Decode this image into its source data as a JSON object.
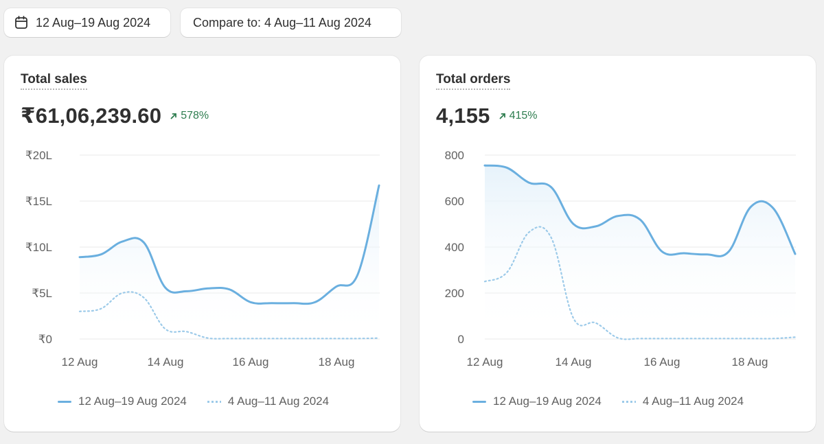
{
  "toolbar": {
    "date_range_label": "12 Aug–19 Aug 2024",
    "compare_label": "Compare to: 4 Aug–11 Aug 2024"
  },
  "colors": {
    "primary_line": "#6aafdf",
    "compare_line": "#9ccae9",
    "positive": "#2e7d4f"
  },
  "cards": [
    {
      "title": "Total sales",
      "value": "₹61,06,239.60",
      "change": "578%",
      "legend_primary": "12 Aug–19 Aug 2024",
      "legend_compare": "4 Aug–11 Aug 2024",
      "chart_data": {
        "type": "line",
        "title": "Total sales",
        "ylim": [
          0,
          2000000
        ],
        "y_tick_labels": [
          "₹20L",
          "₹15L",
          "₹10L",
          "₹5L",
          "₹0"
        ],
        "x_tick_labels": [
          "12 Aug",
          "14 Aug",
          "16 Aug",
          "18 Aug"
        ],
        "x": [
          "12 Aug",
          "12 Aug 12h",
          "13 Aug",
          "13 Aug 12h",
          "14 Aug",
          "14 Aug 12h",
          "15 Aug",
          "15 Aug 12h",
          "16 Aug",
          "16 Aug 12h",
          "17 Aug",
          "17 Aug 12h",
          "18 Aug",
          "18 Aug 12h",
          "19 Aug"
        ],
        "series": [
          {
            "name": "12 Aug–19 Aug 2024",
            "values": [
              890000,
              920000,
              1060000,
              1050000,
              560000,
              520000,
              550000,
              540000,
              400000,
              390000,
              390000,
              400000,
              570000,
              700000,
              1670000
            ]
          },
          {
            "name": "4 Aug–11 Aug 2024",
            "values": [
              300000,
              330000,
              500000,
              450000,
              110000,
              80000,
              10000,
              5000,
              5000,
              5000,
              5000,
              5000,
              5000,
              5000,
              10000
            ]
          }
        ]
      }
    },
    {
      "title": "Total orders",
      "value": "4,155",
      "change": "415%",
      "legend_primary": "12 Aug–19 Aug 2024",
      "legend_compare": "4 Aug–11 Aug 2024",
      "chart_data": {
        "type": "line",
        "title": "Total orders",
        "ylim": [
          0,
          800
        ],
        "y_tick_labels": [
          "800",
          "600",
          "400",
          "200",
          "0"
        ],
        "x_tick_labels": [
          "12 Aug",
          "14 Aug",
          "16 Aug",
          "18 Aug"
        ],
        "x": [
          "12 Aug",
          "12 Aug 12h",
          "13 Aug",
          "13 Aug 12h",
          "14 Aug",
          "14 Aug 12h",
          "15 Aug",
          "15 Aug 12h",
          "16 Aug",
          "16 Aug 12h",
          "17 Aug",
          "17 Aug 12h",
          "18 Aug",
          "18 Aug 12h",
          "19 Aug"
        ],
        "series": [
          {
            "name": "12 Aug–19 Aug 2024",
            "values": [
              755,
              745,
              680,
              660,
              500,
              490,
              535,
              520,
              380,
              373,
              368,
              380,
              575,
              570,
              370
            ]
          },
          {
            "name": "4 Aug–11 Aug 2024",
            "values": [
              250,
              290,
              465,
              440,
              90,
              70,
              5,
              2,
              2,
              2,
              2,
              2,
              2,
              2,
              8
            ]
          }
        ]
      }
    }
  ]
}
